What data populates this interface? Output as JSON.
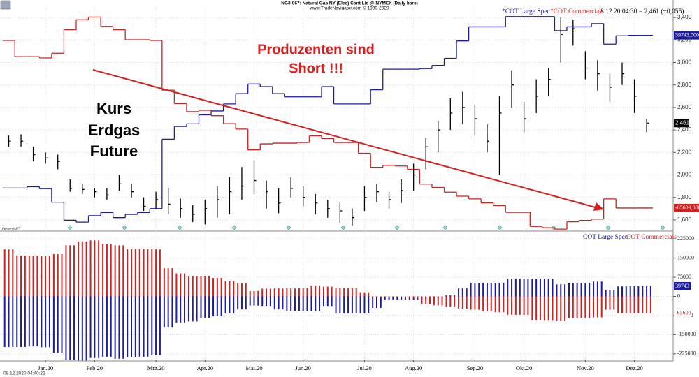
{
  "chart_data": {
    "type": "ohlc",
    "title": "NG3-067: Natural Gas NY (Elec) Cont Liq @ NYMEX  (Daily bars)",
    "subtitle": "www.TradeNavigator.com © 1999-2020",
    "quote": "8.12.20 04:30 = 2,461 (+0,055)",
    "source": "GenesisFT",
    "timestamp": "08.12.2020 04:40:22",
    "annotations": [
      "Produzenten sind",
      "Short !!!",
      "Kurs",
      "Erdgas",
      "Future"
    ],
    "categories": [
      null,
      null,
      null,
      "Jan.20",
      null,
      null,
      null,
      "Feb.20",
      null,
      null,
      null,
      null,
      "Mrz.20",
      null,
      null,
      null,
      "Apr.20",
      null,
      null,
      null,
      "Mai.20",
      null,
      null,
      null,
      "Jun.20",
      null,
      null,
      null,
      null,
      "Jul.20",
      null,
      null,
      null,
      "Aug.20",
      null,
      null,
      null,
      null,
      "Sep.20",
      null,
      null,
      null,
      "Okt.20",
      null,
      null,
      null,
      null,
      "Nov.20",
      null,
      null,
      null,
      "Dez.20",
      null
    ],
    "price": {
      "color": "#000000",
      "high": [
        2350,
        2360,
        2250,
        2200,
        2180,
        1960,
        1920,
        1880,
        1880,
        2000,
        1920,
        1800,
        1850,
        1880,
        1790,
        1730,
        1780,
        1900,
        1980,
        2070,
        2130,
        1950,
        1880,
        1980,
        1900,
        1830,
        1780,
        1760,
        1700,
        1900,
        1920,
        1850,
        1960,
        2100,
        2330,
        2480,
        2680,
        2740,
        2620,
        2450,
        2700,
        2930,
        2650,
        2850,
        2950,
        3400,
        3380,
        3100,
        3020,
        2900,
        3000,
        2850,
        2500
      ],
      "low": [
        2250,
        2250,
        2120,
        2100,
        2050,
        1850,
        1830,
        1800,
        1780,
        1860,
        1800,
        1680,
        1700,
        1650,
        1620,
        1580,
        1560,
        1620,
        1650,
        1780,
        1830,
        1700,
        1660,
        1800,
        1720,
        1650,
        1620,
        1570,
        1550,
        1680,
        1760,
        1700,
        1750,
        1860,
        2050,
        2200,
        2400,
        2450,
        2350,
        2200,
        2000,
        2600,
        2380,
        2550,
        2700,
        3000,
        3150,
        2850,
        2750,
        2650,
        2800,
        2550,
        2380
      ],
      "close": [
        2300,
        2300,
        2180,
        2150,
        2120,
        1880,
        1870,
        1850,
        1820,
        1920,
        1850,
        1720,
        1780,
        1740,
        1700,
        1650,
        1700,
        1780,
        1850,
        1900,
        1950,
        1850,
        1750,
        1880,
        1800,
        1750,
        1700,
        1680,
        1620,
        1800,
        1850,
        1780,
        1860,
        2000,
        2250,
        2400,
        2550,
        2600,
        2500,
        2300,
        2550,
        2800,
        2500,
        2700,
        2850,
        3250,
        3300,
        2950,
        2900,
        2780,
        2900,
        2700,
        2461
      ],
      "last_label": "2,461"
    },
    "ylim": [
      1500,
      3500
    ],
    "yticks": [
      {
        "value": 1600,
        "label": "1,600"
      },
      {
        "value": 1800,
        "label": "1,800"
      },
      {
        "value": 2000,
        "label": "2,000"
      },
      {
        "value": 2200,
        "label": "2,200"
      },
      {
        "value": 2400,
        "label": "2,400"
      },
      {
        "value": 2600,
        "label": "2,600"
      },
      {
        "value": 2800,
        "label": "2,800"
      },
      {
        "value": 3000,
        "label": "3,000"
      },
      {
        "value": 3200,
        "label": "3,200"
      },
      {
        "value": 3400,
        "label": "3,400"
      }
    ],
    "grid": true,
    "series": [
      {
        "name": "COT Large Spec",
        "overlay_name": "*COT Large Spec",
        "color": "#1c1c9c",
        "overlay_ylim": [
          -265000,
          85000
        ],
        "values": [
          -198000,
          -198000,
          -196000,
          -199000,
          -220000,
          -248000,
          -251000,
          -241000,
          -236000,
          -244000,
          -239000,
          -236000,
          -230000,
          -122000,
          -102000,
          -98000,
          -84000,
          -78000,
          -67000,
          -51000,
          -36000,
          -40000,
          -51000,
          -56000,
          -56000,
          -56000,
          -40000,
          -67000,
          -67000,
          -67000,
          -45000,
          -13000,
          -13000,
          -13000,
          -12000,
          -7000,
          4000,
          31000,
          53000,
          53000,
          53000,
          69000,
          69000,
          69000,
          69000,
          47000,
          53000,
          53000,
          58000,
          26000,
          39000,
          39743,
          39743
        ],
        "marker_label": "39743,000",
        "histogram_marker_label": "39743"
      },
      {
        "name": "COT Commercials",
        "overlay_name": "*COT Commercials",
        "color": "#cc2222",
        "overlay_ylim": [
          -100000,
          235000
        ],
        "values": [
          184000,
          160000,
          160000,
          158000,
          165000,
          200000,
          215000,
          219000,
          205000,
          200000,
          185000,
          185000,
          184000,
          110000,
          90000,
          78000,
          80000,
          72000,
          60000,
          52000,
          21000,
          30000,
          31000,
          31000,
          32000,
          42000,
          38000,
          32000,
          32000,
          16000,
          -5000,
          -2000,
          -3000,
          -8000,
          -30000,
          -35000,
          -42000,
          -48000,
          -52000,
          -58000,
          -62000,
          -72000,
          -72000,
          -93000,
          -95000,
          -97000,
          -86000,
          -84000,
          -82000,
          -52000,
          -65609,
          -65609,
          -65609
        ],
        "marker_label": "-65609,000",
        "histogram_marker_label": "-65609"
      }
    ],
    "histogram": {
      "type": "bar",
      "ylim": [
        -250000,
        250000
      ],
      "yticks": [
        -225000,
        -150000,
        -75000,
        0,
        75000,
        150000,
        225000
      ]
    }
  }
}
